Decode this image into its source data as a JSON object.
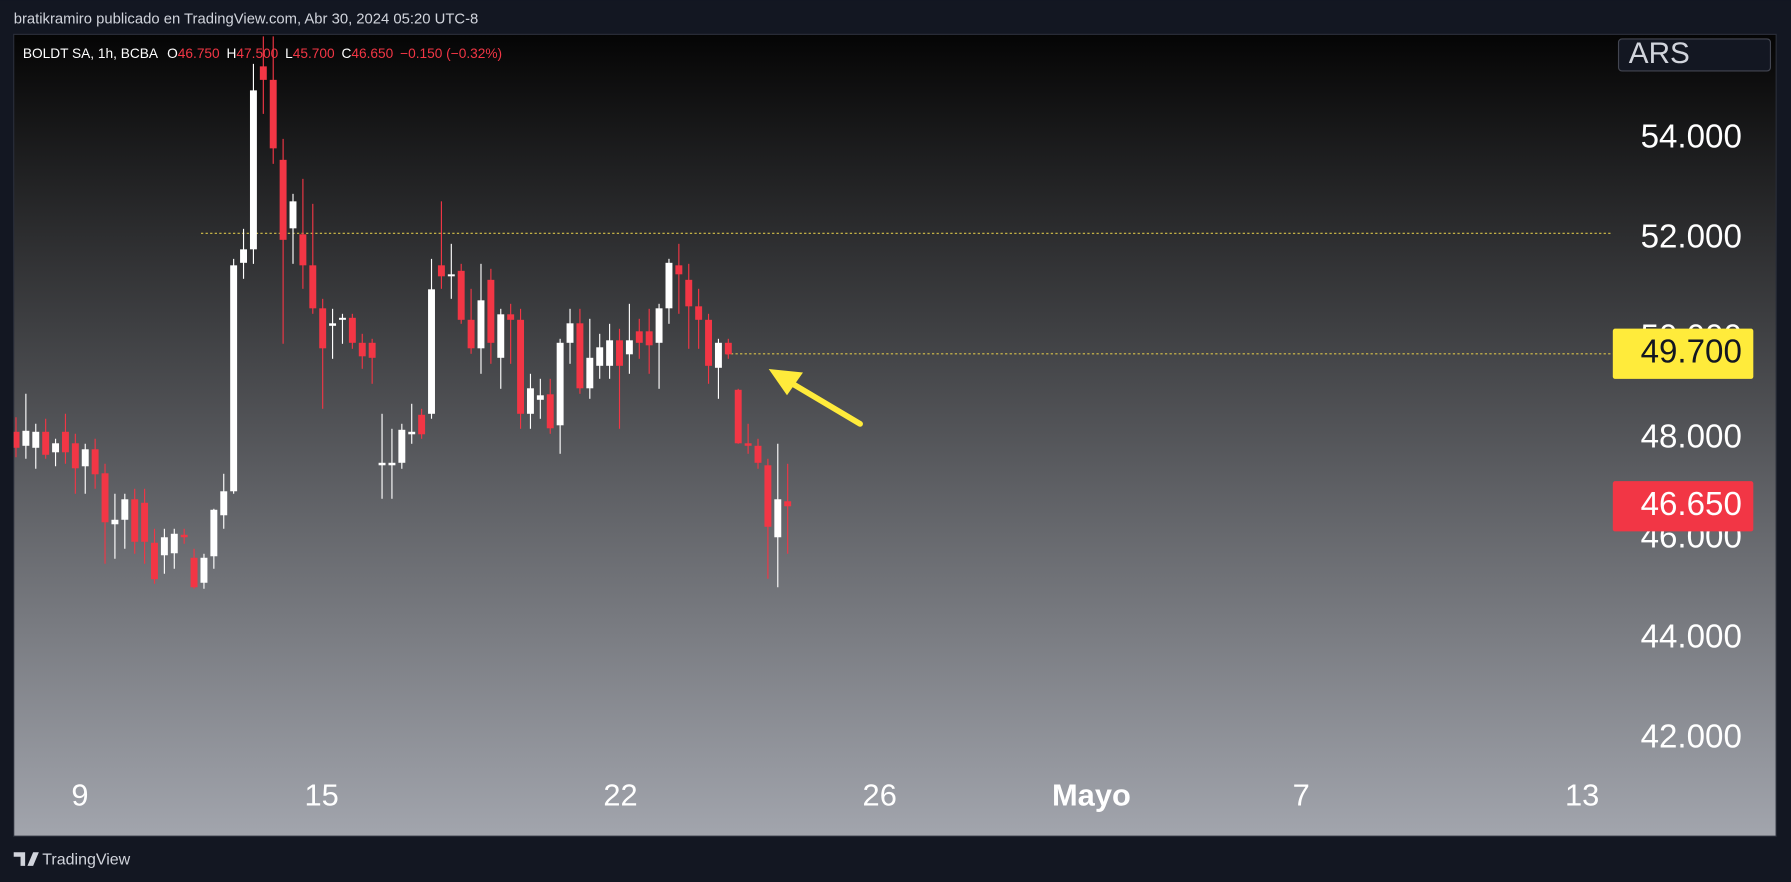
{
  "header": {
    "publisher": "bratikramiro publicado en TradingView.com, Abr 30, 2024 05:20 UTC-8",
    "brand": "TradingView"
  },
  "chart_data": {
    "type": "candlestick",
    "symbol": "BOLDT SA, 1h, BCBA",
    "ohlc_legend": [
      {
        "label": "O",
        "value": "46.750"
      },
      {
        "label": "H",
        "value": "47.500"
      },
      {
        "label": "L",
        "value": "45.700"
      },
      {
        "label": "C",
        "value": "46.650"
      }
    ],
    "change": "−0.150 (−0.32%)",
    "currency": "ARS",
    "up_color": "#ffffff",
    "down_color": "#f23645",
    "open": [
      48.14,
      47.86,
      47.82,
      48.14,
      47.73,
      48.14,
      47.91,
      47.45,
      47.79,
      47.31,
      46.29,
      46.38,
      46.79,
      46.72,
      45.92,
      45.67,
      45.71,
      46.08,
      45.62,
      45.12,
      45.65,
      46.47,
      46.95,
      51.52,
      51.79,
      55.45,
      55.18,
      53.58,
      52.21,
      52.09,
      51.47,
      50.61,
      50.26,
      50.38,
      50.42,
      49.92,
      49.92,
      47.47,
      47.47,
      47.52,
      48.09,
      48.48,
      48.5,
      51.47,
      51.25,
      51.36,
      50.38,
      49.81,
      51.18,
      49.62,
      50.49,
      50.38,
      48.5,
      48.78,
      48.89,
      48.27,
      49.92,
      50.31,
      49.01,
      49.46,
      49.46,
      49.97,
      49.69,
      50.15,
      50.15,
      49.92,
      50.61,
      51.47,
      51.18,
      50.65,
      50.38,
      49.42,
      49.92,
      48.98,
      47.91,
      47.86,
      47.47,
      46.03,
      46.75
    ],
    "high": [
      48.43,
      48.9,
      48.3,
      48.4,
      48.0,
      48.5,
      48.1,
      47.9,
      48.0,
      47.5,
      46.9,
      46.9,
      47.0,
      47.0,
      46.2,
      46.2,
      46.2,
      46.2,
      45.8,
      45.7,
      46.6,
      47.3,
      51.6,
      52.2,
      55.5,
      56.05,
      56.05,
      54.0,
      52.9,
      53.2,
      52.7,
      50.8,
      50.6,
      50.5,
      50.5,
      50.1,
      50.0,
      48.5,
      48.2,
      48.3,
      48.7,
      48.6,
      51.6,
      52.75,
      51.9,
      51.5,
      51.0,
      51.5,
      51.4,
      50.6,
      50.7,
      50.6,
      49.3,
      49.2,
      49.2,
      50.0,
      50.6,
      50.6,
      50.4,
      50.1,
      50.3,
      50.2,
      50.7,
      50.4,
      50.6,
      50.7,
      51.6,
      51.9,
      51.5,
      51.0,
      50.5,
      50.0,
      50.0,
      49.0,
      48.3,
      48.0,
      47.6,
      47.9,
      47.5
    ],
    "low": [
      47.63,
      47.6,
      47.4,
      47.6,
      47.45,
      47.5,
      46.9,
      46.9,
      47.0,
      45.5,
      45.6,
      45.8,
      45.7,
      45.5,
      45.1,
      45.3,
      45.4,
      45.9,
      45.0,
      45.0,
      45.4,
      46.2,
      46.9,
      51.2,
      51.5,
      54.5,
      53.5,
      49.9,
      51.5,
      51.0,
      50.5,
      48.6,
      49.6,
      49.9,
      49.8,
      49.4,
      49.1,
      46.8,
      46.8,
      47.4,
      47.9,
      48.0,
      48.4,
      51.0,
      50.8,
      50.3,
      49.7,
      49.3,
      49.5,
      49.0,
      49.5,
      48.2,
      48.2,
      48.4,
      48.1,
      47.7,
      49.5,
      48.9,
      48.8,
      49.2,
      49.2,
      48.2,
      49.3,
      49.6,
      49.3,
      49.0,
      50.3,
      50.5,
      49.8,
      49.8,
      49.1,
      48.8,
      49.6,
      47.9,
      47.7,
      47.4,
      45.2,
      45.03,
      45.7
    ],
    "close": [
      47.82,
      48.16,
      48.14,
      47.68,
      47.91,
      47.73,
      47.41,
      47.79,
      47.29,
      46.33,
      46.38,
      46.79,
      45.94,
      45.94,
      45.19,
      46.03,
      46.1,
      46.03,
      45.03,
      45.62,
      46.58,
      46.95,
      51.47,
      51.79,
      54.97,
      55.18,
      53.81,
      51.98,
      52.75,
      51.47,
      50.61,
      49.81,
      50.31,
      50.42,
      49.92,
      49.65,
      49.62,
      47.52,
      47.52,
      48.18,
      48.14,
      48.09,
      50.99,
      51.25,
      51.29,
      50.38,
      49.81,
      50.77,
      49.92,
      50.49,
      50.38,
      48.5,
      49.01,
      48.87,
      48.21,
      49.92,
      50.31,
      49.01,
      49.62,
      49.83,
      49.97,
      49.46,
      49.97,
      49.92,
      49.87,
      50.61,
      51.52,
      51.29,
      50.65,
      50.38,
      49.46,
      49.92,
      49.69,
      47.91,
      47.86,
      47.52,
      46.24,
      46.79,
      46.65
    ],
    "xlim": [
      -0.23,
      161.4
    ],
    "xticks": [
      {
        "value": 6.47,
        "label": "9"
      },
      {
        "value": 30.9,
        "label": "15"
      },
      {
        "value": 61.1,
        "label": "22"
      },
      {
        "value": 87.3,
        "label": "26"
      },
      {
        "value": 108.7,
        "label": "Mayo",
        "bold": true
      },
      {
        "value": 129.9,
        "label": "7"
      },
      {
        "value": 158.3,
        "label": "13"
      }
    ],
    "ylim": [
      40.05,
      56.09
    ],
    "yticks": [
      {
        "value": 42,
        "label": "42.000"
      },
      {
        "value": 44,
        "label": "44.000"
      },
      {
        "value": 46,
        "label": "46.000"
      },
      {
        "value": 48,
        "label": "48.000"
      },
      {
        "value": 50,
        "label": "50.000"
      },
      {
        "value": 52,
        "label": "52.000"
      },
      {
        "value": 54,
        "label": "54.000"
      }
    ],
    "horizontal_lines": [
      {
        "value": 52.11,
        "start": 18.7,
        "color": "#d8c24a"
      },
      {
        "value": 49.7,
        "start": 71.8,
        "color": "#d8c24a"
      }
    ],
    "price_labels": [
      {
        "value": 49.7,
        "label": "49.700",
        "color": "#ffeb3b",
        "text_color": "#131722"
      },
      {
        "value": 46.65,
        "label": "46.650",
        "color": "#f23645",
        "text_color": "#ffffff"
      }
    ]
  }
}
